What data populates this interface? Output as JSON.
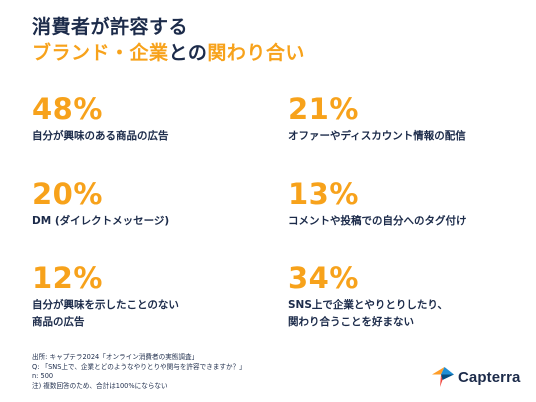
{
  "title": {
    "line1": "消費者が許容する",
    "line2_accent": "ブランド・企業",
    "line2_connector": "との",
    "line2_accent2": "関わり合い"
  },
  "stats": [
    {
      "percent": "48%",
      "label": "自分が興味のある商品の広告"
    },
    {
      "percent": "21%",
      "label": "オファーやディスカウント情報の配信"
    },
    {
      "percent": "20%",
      "label": "DM (ダイレクトメッセージ)"
    },
    {
      "percent": "13%",
      "label": "コメントや投稿での自分へのタグ付け"
    },
    {
      "percent": "12%",
      "label": "自分が興味を示したことのない\n商品の広告"
    },
    {
      "percent": "34%",
      "label": "SNS上で企業とやりとりしたり、\n関わり合うことを好まない"
    }
  ],
  "footnote": {
    "source": "出所: キャプテラ2024「オンライン消費者の実態調査」",
    "question": "Q: 「SNS上で、企業とどのようなやりとりや関与を許容できますか？」",
    "sample": "n: 500",
    "note": "注) 複数回答のため、合計は100%にならない"
  },
  "logo": {
    "icon": "capterra-arrow-icon",
    "text": "Capterra"
  },
  "colors": {
    "accent": "#f7a21b",
    "dark": "#1c2b4a",
    "logo_blue": "#1f8fd6",
    "logo_orange": "#ff9d28",
    "logo_red": "#f0443b",
    "logo_navy": "#044d80"
  }
}
